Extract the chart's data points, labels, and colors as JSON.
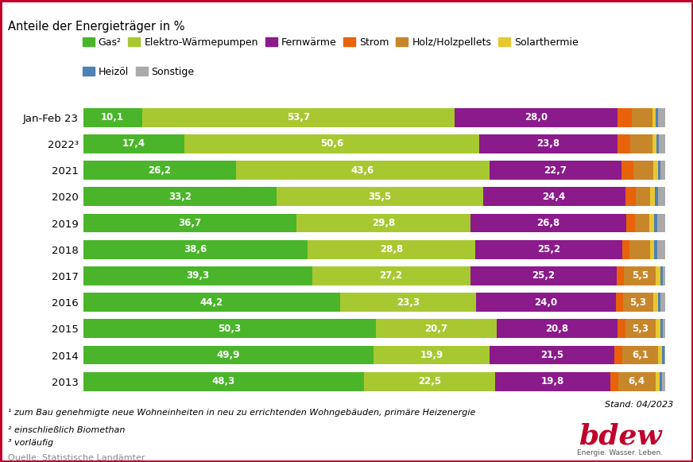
{
  "title": "Anteile der Energieträger in %",
  "years": [
    "Jan-Feb 23",
    "2022³",
    "2021",
    "2020",
    "2019",
    "2018",
    "2017",
    "2016",
    "2015",
    "2014",
    "2013"
  ],
  "categories": [
    "Gas²",
    "Elektro-Wärmepumpen",
    "Fernwärme",
    "Strom",
    "Holz/Holzpellets",
    "Solarthermie",
    "Heizöl",
    "Sonstige"
  ],
  "colors": [
    "#4ab52a",
    "#a8c832",
    "#8b1a8b",
    "#e8620a",
    "#c8862a",
    "#e8c832",
    "#4e82b4",
    "#aaaaaa"
  ],
  "data": [
    [
      10.1,
      53.7,
      28.0,
      2.5,
      3.5,
      0.5,
      0.5,
      1.2
    ],
    [
      17.4,
      50.6,
      23.8,
      2.2,
      3.8,
      0.7,
      0.4,
      1.1
    ],
    [
      26.2,
      43.6,
      22.7,
      2.0,
      3.5,
      0.7,
      0.4,
      0.9
    ],
    [
      33.2,
      35.5,
      24.4,
      1.8,
      2.5,
      0.8,
      0.5,
      1.3
    ],
    [
      36.7,
      29.8,
      26.8,
      1.5,
      2.5,
      0.8,
      0.5,
      1.4
    ],
    [
      38.6,
      28.8,
      25.2,
      1.3,
      3.5,
      0.7,
      0.5,
      1.4
    ],
    [
      39.3,
      27.2,
      25.2,
      1.2,
      5.5,
      0.7,
      0.5,
      0.4
    ],
    [
      44.2,
      23.3,
      24.0,
      1.2,
      5.3,
      0.7,
      0.5,
      0.8
    ],
    [
      50.3,
      20.7,
      20.8,
      1.3,
      5.3,
      0.7,
      0.5,
      0.4
    ],
    [
      49.9,
      19.9,
      21.5,
      1.3,
      6.1,
      0.7,
      0.5,
      0.1
    ],
    [
      48.3,
      22.5,
      19.8,
      1.3,
      6.4,
      0.7,
      0.5,
      0.5
    ]
  ],
  "label_threshold": 4.0,
  "footnotes": [
    "¹ zum Bau genehmigte neue Wohneinheiten in neu zu errichtenden Wohngebäuden, primäre Heizenergie",
    "² einschließlich Biomethan",
    "³ vorläufig"
  ],
  "source": "Quelle: Statistische Landämter",
  "stand": "Stand: 04/2023",
  "background_color": "#ffffff",
  "bar_height": 0.72,
  "title_fontsize": 10.5,
  "label_fontsize": 8.5,
  "legend_fontsize": 9.0,
  "tick_fontsize": 9.5,
  "footnote_fontsize": 8.0,
  "border_color": "#c0002a"
}
